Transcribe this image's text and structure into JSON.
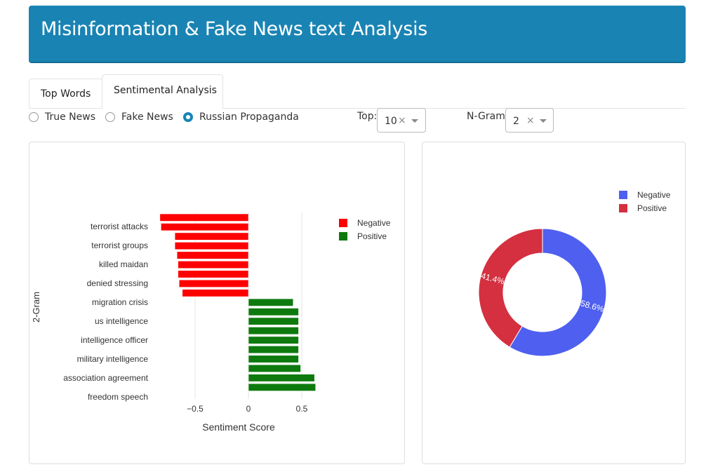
{
  "header": {
    "title": "Misinformation & Fake News text Analysis"
  },
  "tabs": [
    {
      "label": "Top Words"
    },
    {
      "label": "Sentimental Analysis"
    }
  ],
  "news_type": {
    "options": [
      {
        "label": "True News"
      },
      {
        "label": "Fake News"
      },
      {
        "label": "Russian Propaganda"
      }
    ],
    "selected": "Russian Propaganda"
  },
  "controls": {
    "top_label": "Top:",
    "top_value": "10",
    "ngram_label": "N-Gram:",
    "ngram_value": "2",
    "clear_glyph": "×"
  },
  "colors": {
    "header": "#1984b4",
    "negative_bar": "#ff0000",
    "positive_bar": "#0e7a0e",
    "pie_negative": "#4f5ff0",
    "pie_positive": "#d43040"
  },
  "chart_data": [
    {
      "type": "bar",
      "orientation": "horizontal",
      "xlabel": "Sentiment Score",
      "ylabel": "2-Gram",
      "xticks": [
        -0.5,
        0,
        0.5
      ],
      "xlim": [
        -0.97,
        0.75
      ],
      "grid": true,
      "legend_position": "top-right",
      "legend": [
        "Negative",
        "Positive"
      ],
      "labeled_categories": [
        "terrorist attacks",
        "terrorist groups",
        "killed maidan",
        "denied stressing",
        "migration crisis",
        "us intelligence",
        "intelligence officer",
        "military intelligence",
        "association agreement",
        "freedom speech"
      ],
      "values": [
        -0.83,
        -0.82,
        -0.69,
        -0.69,
        -0.67,
        -0.66,
        -0.66,
        -0.65,
        -0.62,
        0.42,
        0.47,
        0.47,
        0.47,
        0.47,
        0.47,
        0.47,
        0.49,
        0.62,
        0.63
      ],
      "tick_labels": [
        "−0.5",
        "0",
        "0.5"
      ]
    },
    {
      "type": "pie",
      "donut": true,
      "legend_position": "top-right",
      "slices": [
        {
          "name": "Negative",
          "value": 58.6,
          "label": "58.6%"
        },
        {
          "name": "Positive",
          "value": 41.4,
          "label": "41.4%"
        }
      ]
    }
  ]
}
